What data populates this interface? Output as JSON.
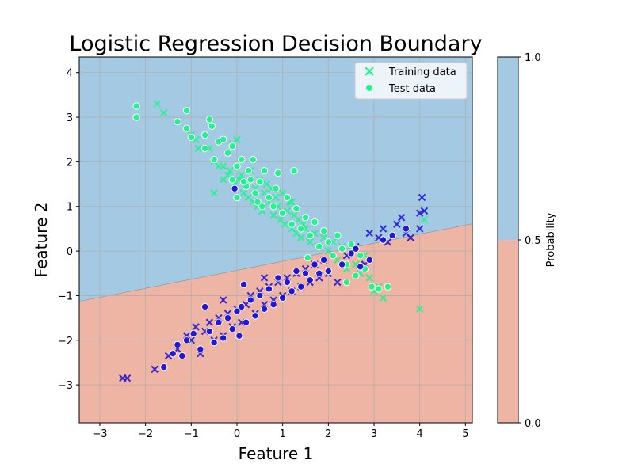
{
  "chart_data": {
    "type": "scatter",
    "title": "Logistic Regression Decision Boundary",
    "xlabel": "Feature 1",
    "ylabel": "Feature 2",
    "xlim": [
      -3.45,
      5.15
    ],
    "ylim": [
      -3.85,
      4.35
    ],
    "x_ticks": [
      -3,
      -2,
      -1,
      0,
      1,
      2,
      3,
      4,
      5
    ],
    "y_ticks": [
      -3,
      -2,
      -1,
      0,
      1,
      2,
      3,
      4
    ],
    "grid": true,
    "legend_position": "top-right",
    "legend": [
      {
        "label": "Training data",
        "marker": "x"
      },
      {
        "label": "Test data",
        "marker": "o"
      }
    ],
    "colors": {
      "class_0": "#1a10d6",
      "class_1": "#1df58a",
      "region_class_1": "#a4c9e2",
      "region_class_0": "#eeb5a5",
      "grid": "#b0b0b0"
    },
    "decision_boundary": {
      "points": [
        [
          -3.45,
          -1.13
        ],
        [
          5.15,
          0.61
        ]
      ]
    },
    "colorbar": {
      "label": "Probability",
      "ticks": [
        "0.0",
        "0.5",
        "1.0"
      ],
      "boundary_value": 0.5
    },
    "series": [
      {
        "name": "Training data",
        "class": 1,
        "marker": "x",
        "points": [
          [
            -1.75,
            3.3
          ],
          [
            -1.6,
            3.1
          ],
          [
            -1.0,
            2.6
          ],
          [
            -0.9,
            2.5
          ],
          [
            -0.85,
            2.3
          ],
          [
            -0.6,
            2.3
          ],
          [
            -0.5,
            2.0
          ],
          [
            -0.4,
            1.9
          ],
          [
            -0.3,
            1.9
          ],
          [
            -0.2,
            1.7
          ],
          [
            -0.15,
            1.8
          ],
          [
            -0.1,
            2.4
          ],
          [
            -0.05,
            1.5
          ],
          [
            0.0,
            2.5
          ],
          [
            0.05,
            1.6
          ],
          [
            0.1,
            1.7
          ],
          [
            0.15,
            1.3
          ],
          [
            0.2,
            1.5
          ],
          [
            0.25,
            1.2
          ],
          [
            0.3,
            1.8
          ],
          [
            0.35,
            1.1
          ],
          [
            0.4,
            1.4
          ],
          [
            0.45,
            1.0
          ],
          [
            0.5,
            1.6
          ],
          [
            0.55,
            0.9
          ],
          [
            0.6,
            1.3
          ],
          [
            0.65,
            1.5
          ],
          [
            0.7,
            1.1
          ],
          [
            0.75,
            1.4
          ],
          [
            0.8,
            0.8
          ],
          [
            0.85,
            1.2
          ],
          [
            0.9,
            1.0
          ],
          [
            0.95,
            0.7
          ],
          [
            1.0,
            1.3
          ],
          [
            1.05,
            0.6
          ],
          [
            1.1,
            0.9
          ],
          [
            1.15,
            1.1
          ],
          [
            1.2,
            0.5
          ],
          [
            1.25,
            0.8
          ],
          [
            1.3,
            0.4
          ],
          [
            1.35,
            0.7
          ],
          [
            1.4,
            0.3
          ],
          [
            1.45,
            0.6
          ],
          [
            1.5,
            0.5
          ],
          [
            1.6,
            0.2
          ],
          [
            1.7,
            0.4
          ],
          [
            1.8,
            0.1
          ],
          [
            1.9,
            0.3
          ],
          [
            2.0,
            0.0
          ],
          [
            2.1,
            0.2
          ],
          [
            2.2,
            -0.2
          ],
          [
            2.3,
            0.1
          ],
          [
            2.4,
            -0.4
          ],
          [
            2.5,
            0.0
          ],
          [
            2.6,
            -0.3
          ],
          [
            2.7,
            -0.5
          ],
          [
            2.8,
            -0.1
          ],
          [
            2.9,
            -0.6
          ],
          [
            3.0,
            -0.9
          ],
          [
            3.1,
            -0.8
          ],
          [
            3.2,
            -1.05
          ],
          [
            4.0,
            -1.3
          ],
          [
            4.1,
            0.7
          ],
          [
            -0.5,
            1.3
          ],
          [
            1.2,
            1.1
          ],
          [
            -0.3,
            1.6
          ]
        ]
      },
      {
        "name": "Training data",
        "class": 0,
        "marker": "x",
        "points": [
          [
            -2.5,
            -2.85
          ],
          [
            -2.4,
            -2.85
          ],
          [
            -1.8,
            -2.65
          ],
          [
            -1.5,
            -2.35
          ],
          [
            -1.3,
            -2.2
          ],
          [
            -1.1,
            -1.9
          ],
          [
            -1.0,
            -2.0
          ],
          [
            -0.9,
            -1.7
          ],
          [
            -0.8,
            -2.3
          ],
          [
            -0.7,
            -1.8
          ],
          [
            -0.6,
            -1.6
          ],
          [
            -0.5,
            -2.0
          ],
          [
            -0.4,
            -1.5
          ],
          [
            -0.3,
            -1.9
          ],
          [
            -0.2,
            -1.4
          ],
          [
            -0.1,
            -1.7
          ],
          [
            0.0,
            -1.3
          ],
          [
            0.1,
            -1.6
          ],
          [
            0.2,
            -1.2
          ],
          [
            0.3,
            -1.0
          ],
          [
            0.4,
            -1.4
          ],
          [
            0.5,
            -0.9
          ],
          [
            0.6,
            -1.2
          ],
          [
            0.7,
            -0.8
          ],
          [
            0.8,
            -1.1
          ],
          [
            0.9,
            -0.7
          ],
          [
            1.0,
            -1.0
          ],
          [
            1.1,
            -0.6
          ],
          [
            1.2,
            -0.9
          ],
          [
            1.3,
            -0.5
          ],
          [
            1.4,
            -0.8
          ],
          [
            1.5,
            -0.4
          ],
          [
            1.6,
            -0.7
          ],
          [
            1.7,
            -0.3
          ],
          [
            1.8,
            -0.6
          ],
          [
            1.9,
            -0.2
          ],
          [
            2.0,
            -0.5
          ],
          [
            2.2,
            -0.7
          ],
          [
            2.4,
            -0.1
          ],
          [
            2.6,
            0.1
          ],
          [
            2.8,
            -0.3
          ],
          [
            2.9,
            0.4
          ],
          [
            3.1,
            0.3
          ],
          [
            3.2,
            0.5
          ],
          [
            3.3,
            0.2
          ],
          [
            3.5,
            0.6
          ],
          [
            3.6,
            0.75
          ],
          [
            3.7,
            0.4
          ],
          [
            3.8,
            0.3
          ],
          [
            4.0,
            0.5
          ],
          [
            4.05,
            1.2
          ],
          [
            4.1,
            0.9
          ],
          [
            4.0,
            0.85
          ],
          [
            -0.3,
            -1.1
          ],
          [
            0.6,
            -0.6
          ]
        ]
      },
      {
        "name": "Test data",
        "class": 1,
        "marker": "o",
        "points": [
          [
            -2.2,
            3.25
          ],
          [
            -2.2,
            3.0
          ],
          [
            -1.3,
            2.9
          ],
          [
            -1.1,
            3.15
          ],
          [
            -1.1,
            2.75
          ],
          [
            -1.0,
            2.55
          ],
          [
            -0.7,
            2.6
          ],
          [
            -0.7,
            2.3
          ],
          [
            -0.6,
            2.95
          ],
          [
            -0.55,
            2.8
          ],
          [
            -0.5,
            2.05
          ],
          [
            -0.4,
            2.45
          ],
          [
            -0.3,
            2.5
          ],
          [
            -0.2,
            2.2
          ],
          [
            -0.1,
            2.35
          ],
          [
            -0.1,
            1.6
          ],
          [
            0.0,
            1.2
          ],
          [
            0.0,
            1.9
          ],
          [
            0.1,
            2.05
          ],
          [
            0.2,
            1.45
          ],
          [
            0.25,
            1.8
          ],
          [
            0.3,
            1.6
          ],
          [
            0.35,
            2.05
          ],
          [
            0.4,
            1.3
          ],
          [
            0.5,
            1.55
          ],
          [
            0.55,
            1.0
          ],
          [
            0.6,
            1.8
          ],
          [
            0.7,
            1.2
          ],
          [
            0.8,
            1.0
          ],
          [
            0.85,
            1.4
          ],
          [
            0.9,
            1.75
          ],
          [
            1.0,
            0.85
          ],
          [
            1.1,
            1.2
          ],
          [
            1.2,
            0.6
          ],
          [
            1.25,
            1.8
          ],
          [
            1.3,
            0.95
          ],
          [
            1.4,
            0.5
          ],
          [
            1.5,
            0.75
          ],
          [
            1.6,
            0.35
          ],
          [
            1.7,
            0.65
          ],
          [
            1.8,
            0.1
          ],
          [
            1.9,
            0.45
          ],
          [
            2.0,
            0.2
          ],
          [
            2.1,
            -0.1
          ],
          [
            2.2,
            0.35
          ],
          [
            2.3,
            0.05
          ],
          [
            2.4,
            -0.3
          ],
          [
            2.5,
            0.15
          ],
          [
            2.6,
            -0.55
          ],
          [
            2.7,
            -0.1
          ],
          [
            2.8,
            -0.4
          ],
          [
            2.95,
            -0.8
          ],
          [
            3.1,
            -0.85
          ],
          [
            3.3,
            -0.8
          ],
          [
            2.4,
            -0.7
          ],
          [
            1.55,
            -0.15
          ],
          [
            0.15,
            1.55
          ],
          [
            0.45,
            1.1
          ]
        ]
      },
      {
        "name": "Test data",
        "class": 0,
        "marker": "o",
        "points": [
          [
            -1.6,
            -2.6
          ],
          [
            -1.4,
            -2.3
          ],
          [
            -1.3,
            -2.1
          ],
          [
            -1.2,
            -2.35
          ],
          [
            -1.1,
            -2.0
          ],
          [
            -0.95,
            -1.85
          ],
          [
            -0.8,
            -2.2
          ],
          [
            -0.7,
            -1.25
          ],
          [
            -0.6,
            -1.8
          ],
          [
            -0.5,
            -2.05
          ],
          [
            -0.4,
            -1.6
          ],
          [
            -0.3,
            -1.95
          ],
          [
            -0.2,
            -1.5
          ],
          [
            -0.1,
            -1.75
          ],
          [
            0.0,
            -1.35
          ],
          [
            0.05,
            -1.9
          ],
          [
            0.1,
            -1.25
          ],
          [
            0.2,
            -1.6
          ],
          [
            0.3,
            -1.1
          ],
          [
            0.4,
            -1.45
          ],
          [
            0.5,
            -1.0
          ],
          [
            0.6,
            -1.3
          ],
          [
            0.7,
            -0.85
          ],
          [
            0.8,
            -1.2
          ],
          [
            0.9,
            -0.6
          ],
          [
            1.0,
            -1.05
          ],
          [
            1.1,
            -0.7
          ],
          [
            1.2,
            -0.9
          ],
          [
            1.3,
            -0.45
          ],
          [
            1.4,
            -0.8
          ],
          [
            1.5,
            -0.5
          ],
          [
            1.6,
            -0.65
          ],
          [
            1.7,
            -0.3
          ],
          [
            1.8,
            -0.5
          ],
          [
            1.9,
            -0.2
          ],
          [
            2.0,
            -0.45
          ],
          [
            2.3,
            -0.3
          ],
          [
            2.5,
            -0.05
          ],
          [
            2.6,
            0.05
          ],
          [
            2.7,
            -0.35
          ],
          [
            2.9,
            -0.2
          ],
          [
            3.2,
            0.25
          ],
          [
            3.4,
            0.35
          ],
          [
            3.7,
            0.5
          ],
          [
            -0.05,
            1.4
          ],
          [
            0.15,
            -0.75
          ]
        ]
      }
    ]
  }
}
